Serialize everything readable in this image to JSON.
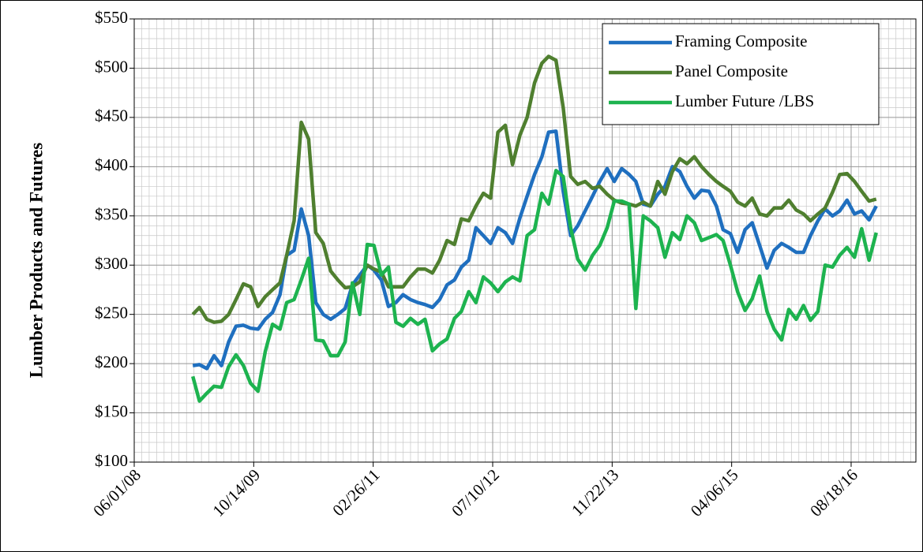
{
  "chart_data": {
    "type": "line",
    "y_label": "Lumber Products and Futures",
    "x": [
      "02/01/09",
      "03/01/09",
      "04/01/09",
      "05/01/09",
      "06/01/09",
      "07/01/09",
      "08/01/09",
      "09/01/09",
      "10/01/09",
      "11/01/09",
      "12/01/09",
      "01/01/10",
      "02/01/10",
      "03/01/10",
      "04/01/10",
      "05/01/10",
      "06/01/10",
      "07/01/10",
      "08/01/10",
      "09/01/10",
      "10/01/10",
      "11/01/10",
      "12/01/10",
      "01/01/11",
      "02/01/11",
      "03/01/11",
      "04/01/11",
      "05/01/11",
      "06/01/11",
      "07/01/11",
      "08/01/11",
      "09/01/11",
      "10/01/11",
      "11/01/11",
      "12/01/11",
      "01/01/12",
      "02/01/12",
      "03/01/12",
      "04/01/12",
      "05/01/12",
      "06/01/12",
      "07/01/12",
      "08/01/12",
      "09/01/12",
      "10/01/12",
      "11/01/12",
      "12/01/12",
      "01/01/13",
      "02/01/13",
      "03/01/13",
      "04/01/13",
      "05/01/13",
      "06/01/13",
      "07/01/13",
      "08/01/13",
      "09/01/13",
      "10/01/13",
      "11/01/13",
      "12/01/13",
      "01/01/14",
      "02/01/14",
      "03/01/14",
      "04/01/14",
      "05/01/14",
      "06/01/14",
      "07/01/14",
      "08/01/14",
      "09/01/14",
      "10/01/14",
      "11/01/14",
      "12/01/14",
      "01/01/15",
      "02/01/15",
      "03/01/15",
      "04/01/15",
      "05/01/15",
      "06/01/15",
      "07/01/15",
      "08/01/15",
      "09/01/15",
      "10/01/15",
      "11/01/15",
      "12/01/15",
      "01/01/16",
      "02/01/16",
      "03/01/16",
      "04/01/16",
      "05/01/16",
      "06/01/16",
      "07/01/16",
      "08/01/16",
      "09/01/16",
      "10/01/16",
      "11/01/16",
      "12/01/16"
    ],
    "series": [
      {
        "name": "Framing Composite",
        "color": "#1f6fbf",
        "values": [
          198,
          199,
          195,
          208,
          198,
          222,
          238,
          239,
          236,
          235,
          245,
          252,
          270,
          310,
          315,
          357,
          330,
          262,
          250,
          245,
          250,
          256,
          280,
          290,
          300,
          295,
          285,
          258,
          262,
          270,
          265,
          262,
          260,
          257,
          265,
          280,
          285,
          298,
          305,
          338,
          330,
          322,
          338,
          333,
          322,
          348,
          370,
          392,
          410,
          435,
          436,
          375,
          330,
          340,
          355,
          370,
          385,
          398,
          385,
          398,
          392,
          385,
          362,
          360,
          372,
          380,
          400,
          395,
          380,
          368,
          376,
          375,
          360,
          336,
          332,
          313,
          336,
          343,
          320,
          297,
          315,
          322,
          318,
          313,
          313,
          330,
          345,
          357,
          350,
          355,
          366,
          352,
          355,
          346,
          360
        ]
      },
      {
        "name": "Panel Composite",
        "color": "#4f7f2f",
        "values": [
          250,
          257,
          245,
          242,
          243,
          250,
          265,
          281,
          278,
          258,
          268,
          275,
          282,
          310,
          345,
          445,
          428,
          333,
          322,
          294,
          285,
          277,
          278,
          283,
          300,
          296,
          293,
          278,
          278,
          278,
          288,
          296,
          296,
          292,
          305,
          325,
          321,
          347,
          345,
          360,
          373,
          368,
          435,
          442,
          402,
          432,
          450,
          485,
          505,
          512,
          508,
          460,
          390,
          382,
          385,
          378,
          380,
          372,
          366,
          363,
          362,
          360,
          364,
          360,
          385,
          372,
          395,
          408,
          403,
          410,
          400,
          392,
          385,
          380,
          375,
          364,
          360,
          368,
          352,
          350,
          358,
          358,
          366,
          356,
          352,
          345,
          352,
          358,
          374,
          392,
          393,
          385,
          375,
          365,
          367
        ]
      },
      {
        "name": "Lumber Future /LBS",
        "color": "#1db34f",
        "values": [
          187,
          162,
          170,
          177,
          176,
          197,
          209,
          198,
          180,
          172,
          212,
          240,
          235,
          262,
          265,
          285,
          307,
          224,
          223,
          208,
          208,
          222,
          282,
          250,
          321,
          320,
          290,
          298,
          242,
          238,
          246,
          240,
          245,
          213,
          220,
          225,
          246,
          253,
          273,
          262,
          288,
          282,
          273,
          283,
          288,
          284,
          330,
          336,
          373,
          362,
          396,
          390,
          338,
          306,
          295,
          310,
          320,
          338,
          365,
          365,
          362,
          256,
          350,
          345,
          338,
          308,
          333,
          326,
          350,
          343,
          325,
          328,
          331,
          325,
          300,
          273,
          254,
          266,
          289,
          253,
          235,
          224,
          255,
          245,
          259,
          244,
          253,
          300,
          298,
          310,
          318,
          308,
          337,
          305,
          333
        ]
      }
    ],
    "xlim": [
      "06/01/08",
      "05/16/17"
    ],
    "xticks": [
      "06/01/08",
      "10/14/09",
      "02/26/11",
      "07/10/12",
      "11/22/13",
      "04/06/15",
      "08/18/16"
    ],
    "ylim": [
      100,
      550
    ],
    "yticks": [
      {
        "value": 100,
        "label": "$100"
      },
      {
        "value": 150,
        "label": "$150"
      },
      {
        "value": 200,
        "label": "$200"
      },
      {
        "value": 250,
        "label": "$250"
      },
      {
        "value": 300,
        "label": "$300"
      },
      {
        "value": 350,
        "label": "$350"
      },
      {
        "value": 400,
        "label": "$400"
      },
      {
        "value": 450,
        "label": "$450"
      },
      {
        "value": 500,
        "label": "$500"
      },
      {
        "value": 550,
        "label": "$550"
      }
    ],
    "grid": true,
    "legend": "upper right"
  }
}
